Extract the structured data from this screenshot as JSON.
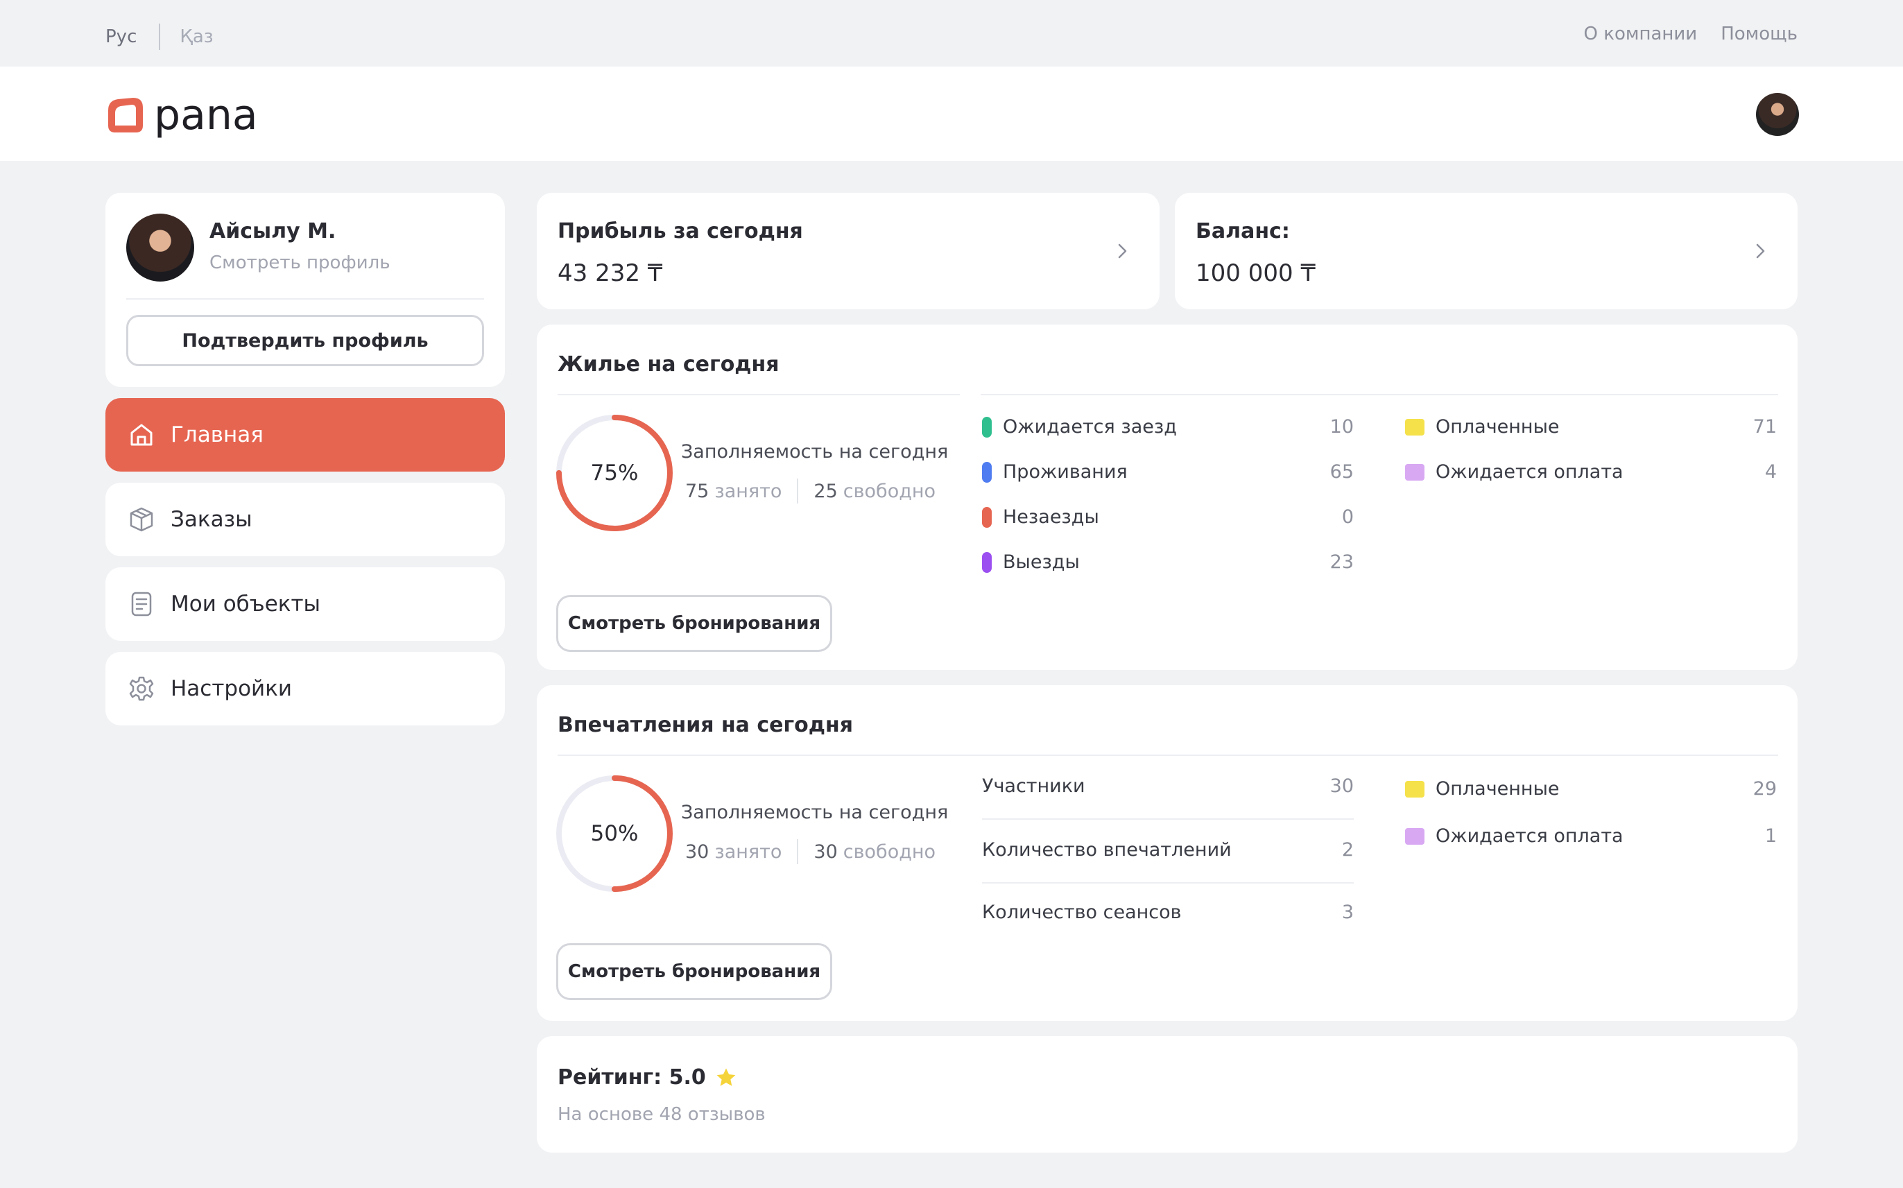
{
  "topbar": {
    "lang_active": "Рус",
    "lang_other": "Қаз",
    "about": "О компании",
    "help": "Помощь"
  },
  "header": {
    "logo_text": "pana",
    "brand_color": "#e66551"
  },
  "profile": {
    "name": "Айсылу М.",
    "view_profile": "Смотреть профиль",
    "confirm_button": "Подтвердить профиль"
  },
  "nav": {
    "items": [
      {
        "label": "Главная",
        "icon": "home-icon",
        "active": true
      },
      {
        "label": "Заказы",
        "icon": "box-icon",
        "active": false
      },
      {
        "label": "Мои объекты",
        "icon": "document-icon",
        "active": false
      },
      {
        "label": "Настройки",
        "icon": "gear-icon",
        "active": false
      }
    ]
  },
  "profit": {
    "title": "Прибыль за сегодня",
    "value": "43 232 ₸"
  },
  "balance": {
    "title": "Баланс:",
    "value": "100 000 ₸"
  },
  "housing": {
    "title": "Жилье на сегодня",
    "occupancy_percent": 75,
    "occupancy_label": "75%",
    "occupancy_title": "Заполняемость на сегодня",
    "occupied_num": "75",
    "occupied_label": "занято",
    "free_num": "25",
    "free_label": "свободно",
    "statuses": [
      {
        "label": "Ожидается заезд",
        "value": "10",
        "color": "#2fbf8f"
      },
      {
        "label": "Проживания",
        "value": "65",
        "color": "#4f7cf0"
      },
      {
        "label": "Незаезды",
        "value": "0",
        "color": "#e66551"
      },
      {
        "label": "Выезды",
        "value": "23",
        "color": "#9b4ff0"
      }
    ],
    "payments": [
      {
        "label": "Оплаченные",
        "value": "71",
        "color": "#f5e14a"
      },
      {
        "label": "Ожидается оплата",
        "value": "4",
        "color": "#d8a8f3"
      }
    ],
    "button": "Смотреть бронирования"
  },
  "impressions": {
    "title": "Впечатления на сегодня",
    "occupancy_percent": 50,
    "occupancy_label": "50%",
    "occupancy_title": "Заполняемость на сегодня",
    "occupied_num": "30",
    "occupied_label": "занято",
    "free_num": "30",
    "free_label": "свободно",
    "stats": [
      {
        "label": "Участники",
        "value": "30"
      },
      {
        "label": "Количество впечатлений",
        "value": "2"
      },
      {
        "label": "Количество сеансов",
        "value": "3"
      }
    ],
    "payments": [
      {
        "label": "Оплаченные",
        "value": "29",
        "color": "#f5e14a"
      },
      {
        "label": "Ожидается оплата",
        "value": "1",
        "color": "#d8a8f3"
      }
    ],
    "button": "Смотреть бронирования"
  },
  "rating": {
    "title": "Рейтинг: 5.0",
    "subtitle": "На основе 48 отзывов",
    "star_color": "#f5d33a"
  }
}
